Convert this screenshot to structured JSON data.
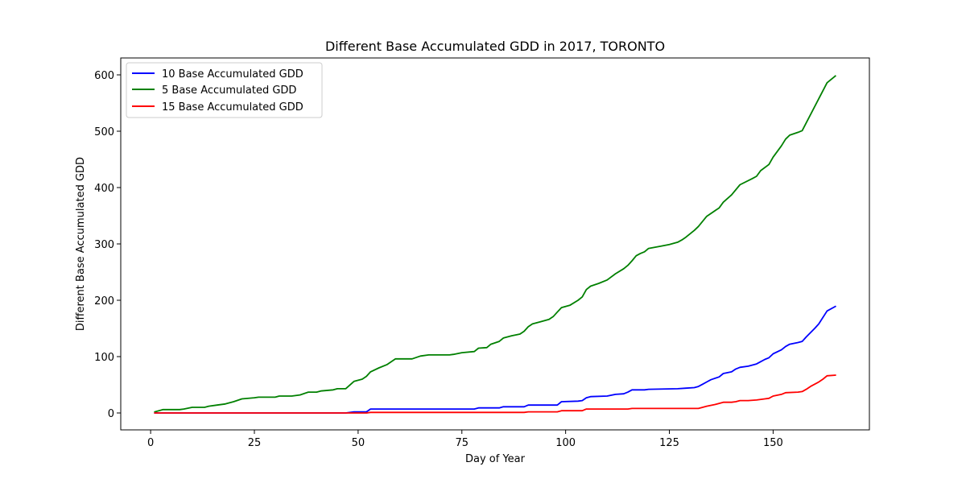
{
  "chart_data": {
    "type": "line",
    "title": "Different Base Accumulated GDD in 2017, TORONTO",
    "xlabel": "Day of Year",
    "ylabel": "Different Base Accumulated GDD",
    "xlim": [
      -7.2,
      173.2
    ],
    "ylim": [
      -30,
      630
    ],
    "xticks": [
      0,
      25,
      50,
      75,
      100,
      125,
      150
    ],
    "yticks": [
      0,
      100,
      200,
      300,
      400,
      500,
      600
    ],
    "grid": false,
    "legend_position": "top-left",
    "series": [
      {
        "name": "10 Base Accumulated GDD",
        "color": "#0000ff",
        "points": [
          [
            1,
            0
          ],
          [
            47,
            0
          ],
          [
            49,
            2
          ],
          [
            52,
            2
          ],
          [
            53,
            7
          ],
          [
            78,
            7
          ],
          [
            79,
            9
          ],
          [
            84,
            9
          ],
          [
            85,
            11
          ],
          [
            90,
            11
          ],
          [
            91,
            14
          ],
          [
            98,
            14
          ],
          [
            99,
            20
          ],
          [
            103,
            21
          ],
          [
            104,
            22
          ],
          [
            105,
            27
          ],
          [
            106,
            29
          ],
          [
            110,
            30
          ],
          [
            112,
            33
          ],
          [
            114,
            34
          ],
          [
            115,
            37
          ],
          [
            116,
            41
          ],
          [
            119,
            41
          ],
          [
            120,
            42
          ],
          [
            127,
            43
          ],
          [
            129,
            44
          ],
          [
            131,
            45
          ],
          [
            132,
            47
          ],
          [
            133,
            51
          ],
          [
            134,
            55
          ],
          [
            135,
            59
          ],
          [
            137,
            64
          ],
          [
            138,
            70
          ],
          [
            140,
            73
          ],
          [
            141,
            78
          ],
          [
            142,
            81
          ],
          [
            144,
            83
          ],
          [
            146,
            87
          ],
          [
            147,
            91
          ],
          [
            148,
            95
          ],
          [
            149,
            98
          ],
          [
            150,
            105
          ],
          [
            152,
            112
          ],
          [
            153,
            118
          ],
          [
            154,
            122
          ],
          [
            156,
            125
          ],
          [
            157,
            127
          ],
          [
            158,
            135
          ],
          [
            160,
            150
          ],
          [
            161,
            158
          ],
          [
            163,
            181
          ],
          [
            165,
            189
          ]
        ]
      },
      {
        "name": "5 Base Accumulated GDD",
        "color": "#008000",
        "points": [
          [
            1,
            2
          ],
          [
            3,
            6
          ],
          [
            7,
            6
          ],
          [
            8,
            7
          ],
          [
            10,
            10
          ],
          [
            13,
            10
          ],
          [
            14,
            12
          ],
          [
            16,
            14
          ],
          [
            18,
            16
          ],
          [
            20,
            20
          ],
          [
            22,
            25
          ],
          [
            25,
            27
          ],
          [
            26,
            28
          ],
          [
            30,
            28
          ],
          [
            31,
            30
          ],
          [
            34,
            30
          ],
          [
            36,
            32
          ],
          [
            38,
            37
          ],
          [
            40,
            37
          ],
          [
            41,
            39
          ],
          [
            44,
            41
          ],
          [
            45,
            43
          ],
          [
            47,
            43
          ],
          [
            49,
            56
          ],
          [
            51,
            60
          ],
          [
            52,
            65
          ],
          [
            53,
            73
          ],
          [
            55,
            80
          ],
          [
            57,
            86
          ],
          [
            59,
            96
          ],
          [
            63,
            96
          ],
          [
            65,
            101
          ],
          [
            67,
            103
          ],
          [
            72,
            103
          ],
          [
            73,
            104
          ],
          [
            75,
            107
          ],
          [
            78,
            109
          ],
          [
            79,
            115
          ],
          [
            81,
            116
          ],
          [
            82,
            122
          ],
          [
            84,
            127
          ],
          [
            85,
            133
          ],
          [
            87,
            137
          ],
          [
            89,
            140
          ],
          [
            90,
            145
          ],
          [
            91,
            153
          ],
          [
            92,
            158
          ],
          [
            94,
            162
          ],
          [
            96,
            166
          ],
          [
            97,
            171
          ],
          [
            98,
            179
          ],
          [
            99,
            187
          ],
          [
            101,
            191
          ],
          [
            103,
            200
          ],
          [
            104,
            206
          ],
          [
            105,
            219
          ],
          [
            106,
            225
          ],
          [
            108,
            230
          ],
          [
            110,
            236
          ],
          [
            112,
            247
          ],
          [
            114,
            256
          ],
          [
            115,
            262
          ],
          [
            116,
            270
          ],
          [
            117,
            279
          ],
          [
            118,
            283
          ],
          [
            119,
            286
          ],
          [
            120,
            292
          ],
          [
            123,
            296
          ],
          [
            125,
            299
          ],
          [
            127,
            303
          ],
          [
            128,
            307
          ],
          [
            129,
            312
          ],
          [
            131,
            324
          ],
          [
            132,
            331
          ],
          [
            134,
            349
          ],
          [
            137,
            364
          ],
          [
            138,
            374
          ],
          [
            140,
            387
          ],
          [
            142,
            405
          ],
          [
            145,
            416
          ],
          [
            146,
            420
          ],
          [
            147,
            430
          ],
          [
            149,
            441
          ],
          [
            150,
            454
          ],
          [
            152,
            474
          ],
          [
            153,
            486
          ],
          [
            154,
            493
          ],
          [
            156,
            498
          ],
          [
            157,
            501
          ],
          [
            163,
            586
          ],
          [
            165,
            598
          ]
        ]
      },
      {
        "name": "15 Base Accumulated GDD",
        "color": "#ff0000",
        "points": [
          [
            1,
            0
          ],
          [
            52,
            0
          ],
          [
            53,
            1
          ],
          [
            90,
            1
          ],
          [
            91,
            2
          ],
          [
            98,
            2
          ],
          [
            99,
            4
          ],
          [
            104,
            4
          ],
          [
            105,
            7
          ],
          [
            115,
            7
          ],
          [
            116,
            8
          ],
          [
            132,
            8
          ],
          [
            133,
            10
          ],
          [
            134,
            12
          ],
          [
            136,
            15
          ],
          [
            138,
            19
          ],
          [
            140,
            19
          ],
          [
            141,
            20
          ],
          [
            142,
            22
          ],
          [
            144,
            22
          ],
          [
            146,
            23
          ],
          [
            148,
            25
          ],
          [
            149,
            26
          ],
          [
            150,
            30
          ],
          [
            152,
            33
          ],
          [
            153,
            36
          ],
          [
            156,
            37
          ],
          [
            157,
            38
          ],
          [
            158,
            42
          ],
          [
            159,
            47
          ],
          [
            161,
            55
          ],
          [
            162,
            60
          ],
          [
            163,
            66
          ],
          [
            165,
            67
          ]
        ]
      }
    ]
  }
}
